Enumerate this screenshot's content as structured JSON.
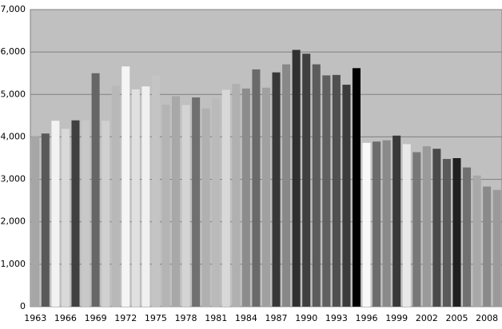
{
  "chart_data": {
    "type": "bar",
    "categories": [
      "1963",
      null,
      null,
      "1966",
      null,
      null,
      "1969",
      null,
      null,
      "1972",
      null,
      null,
      "1975",
      null,
      null,
      "1978",
      null,
      null,
      "1981",
      null,
      null,
      "1984",
      null,
      null,
      "1987",
      null,
      null,
      "1990",
      null,
      null,
      "1993",
      null,
      null,
      "1996",
      null,
      null,
      "1999",
      null,
      null,
      "2002",
      null,
      null,
      "2005",
      null,
      null,
      "2008",
      null
    ],
    "values": [
      4020,
      4080,
      4380,
      4190,
      4390,
      4390,
      5500,
      4380,
      5200,
      5660,
      5120,
      5190,
      5450,
      4760,
      4960,
      4750,
      4930,
      4670,
      4900,
      5110,
      5250,
      5140,
      5590,
      5160,
      5520,
      5710,
      6050,
      5960,
      5710,
      5450,
      5460,
      5230,
      5620,
      3860,
      3890,
      3920,
      4030,
      3830,
      3640,
      3780,
      3720,
      3480,
      3500,
      3280,
      3090,
      2830,
      2750
    ],
    "colors": [
      "#a6a6a6",
      "#595959",
      "#f2f2f2",
      "#d9d9d9",
      "#404040",
      "#c8c8c8",
      "#666666",
      "#d0d0d0",
      "#b8b8b8",
      "#f5f5f5",
      "#e0e0e0",
      "#f0f0f0",
      "#c4c4c4",
      "#b4b4b4",
      "#a8a8a8",
      "#d4d4d4",
      "#707070",
      "#b0b0b0",
      "#bababa",
      "#d8d8d8",
      "#b0b0b0",
      "#8c8c8c",
      "#6a6a6a",
      "#a0a0a0",
      "#383838",
      "#888888",
      "#303030",
      "#404040",
      "#5c5c5c",
      "#606060",
      "#505050",
      "#3c3c3c",
      "#000000",
      "#f8f8f8",
      "#6c6c6c",
      "#8a8a8a",
      "#3a3a3a",
      "#e8e8e8",
      "#787878",
      "#9a9a9a",
      "#4a4a4a",
      "#5a5a5a",
      "#202020",
      "#707070",
      "#a8a8a8",
      "#8a8a8a",
      "#9a9a9a"
    ],
    "ylim": [
      0,
      7000
    ],
    "yticks": [
      0,
      {
        "value": 1000,
        "label": "1,000"
      },
      {
        "value": 2000,
        "label": "2,000"
      },
      {
        "value": 3000,
        "label": "3,000"
      },
      {
        "value": 4000,
        "label": "4,000"
      },
      {
        "value": 5000,
        "label": "5,000"
      },
      {
        "value": 6000,
        "label": "6,000"
      },
      {
        "value": 7000,
        "label": "7,000"
      }
    ],
    "grid": true
  }
}
